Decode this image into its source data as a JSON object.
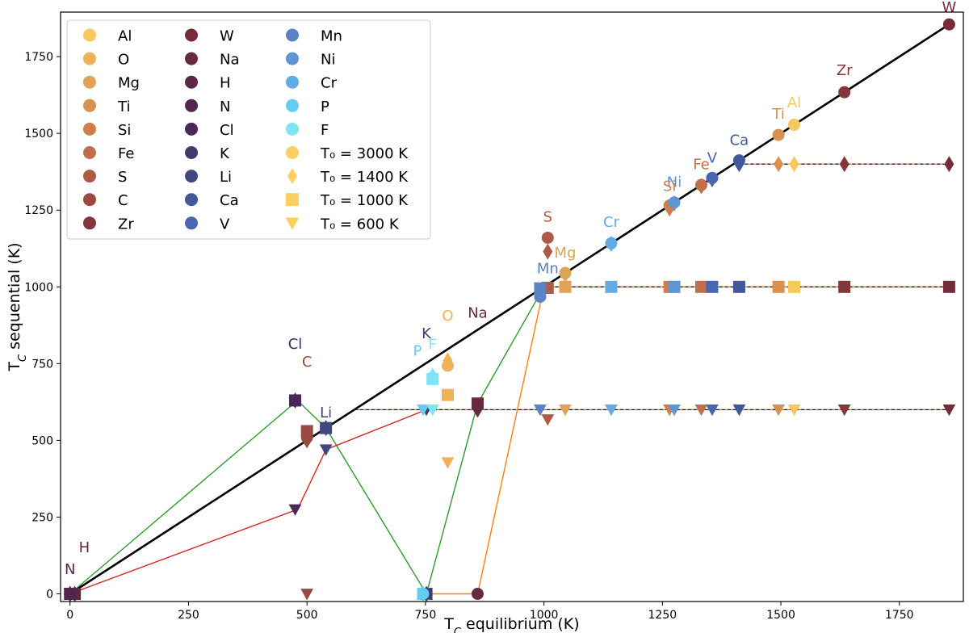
{
  "chart_data": {
    "type": "scatter",
    "xlabel": "T_C equilibrium (K)",
    "ylabel": "T_C sequential (K)",
    "xlim": [
      -20,
      1885
    ],
    "ylim": [
      -25,
      1895
    ],
    "grid": false,
    "legend_position": "top-left",
    "xticks": [
      0,
      250,
      500,
      750,
      1000,
      1250,
      1500,
      1750
    ],
    "yticks": [
      0,
      250,
      500,
      750,
      1000,
      1250,
      1500,
      1750
    ],
    "identity_line": {
      "x": [
        0,
        1855
      ],
      "y": [
        0,
        1855
      ],
      "color": "#000000"
    },
    "plateaus": [
      {
        "y": 1400,
        "x": [
          1412,
          1855
        ]
      },
      {
        "y": 1000,
        "x": [
          1000,
          1855
        ]
      },
      {
        "y": 600,
        "x": [
          600,
          1855
        ]
      }
    ],
    "elements": [
      {
        "name": "Al",
        "tc": 1528,
        "color": "#f5c95e",
        "t3000": 1528,
        "t1400": 1400,
        "t1000": 1000,
        "t600": 600
      },
      {
        "name": "O",
        "tc": 797,
        "color": "#eeb259",
        "t3000": 743,
        "t1400": 760,
        "t1000": 648,
        "t600": 428
      },
      {
        "name": "Mg",
        "tc": 1045,
        "color": "#e0a256",
        "t3000": 1045,
        "t1400": 1040,
        "t1000": 1000,
        "t600": 600
      },
      {
        "name": "Ti",
        "tc": 1495,
        "color": "#d99152",
        "t3000": 1495,
        "t1400": 1400,
        "t1000": 1000,
        "t600": 600
      },
      {
        "name": "Si",
        "tc": 1265,
        "color": "#ce7f4e",
        "t3000": 1265,
        "t1400": 1255,
        "t1000": 1000,
        "t600": 600
      },
      {
        "name": "Fe",
        "tc": 1332,
        "color": "#c06f4a",
        "t3000": 1332,
        "t1400": 1328,
        "t1000": 1000,
        "t600": 600
      },
      {
        "name": "S",
        "tc": 1008,
        "color": "#ae5a45",
        "t3000": 1160,
        "t1400": 1115,
        "t1000": 997,
        "t600": 568
      },
      {
        "name": "C",
        "tc": 500,
        "color": "#9a4940",
        "t3000": 510,
        "t1400": 500,
        "t1000": 530,
        "t600": 0
      },
      {
        "name": "Zr",
        "tc": 1634,
        "color": "#85363b",
        "t3000": 1634,
        "t1400": 1400,
        "t1000": 1000,
        "t600": 600
      },
      {
        "name": "W",
        "tc": 1855,
        "color": "#752b3a",
        "t3000": 1855,
        "t1400": 1400,
        "t1000": 1000,
        "t600": 600
      },
      {
        "name": "Na",
        "tc": 860,
        "color": "#692a40",
        "t3000": 0,
        "t1400": 600,
        "t1000": 620,
        "t600": 600
      },
      {
        "name": "H",
        "tc": 10,
        "color": "#5c2846",
        "t3000": 0,
        "t1400": 0,
        "t1000": 0,
        "t600": 0
      },
      {
        "name": "N",
        "tc": 0,
        "color": "#52264c",
        "t3000": 0,
        "t1400": 0,
        "t1000": 0,
        "t600": 0
      },
      {
        "name": "Cl",
        "tc": 475,
        "color": "#48295a",
        "t3000": 630,
        "t1400": 630,
        "t1000": 630,
        "t600": 275
      },
      {
        "name": "K",
        "tc": 752,
        "color": "#413a70",
        "t3000": 0,
        "t1400": 0,
        "t1000": 0,
        "t600": 600
      },
      {
        "name": "Li",
        "tc": 540,
        "color": "#40487e",
        "t3000": 540,
        "t1400": 540,
        "t1000": 540,
        "t600": 470
      },
      {
        "name": "Ca",
        "tc": 1412,
        "color": "#41589a",
        "t3000": 1412,
        "t1400": 1400,
        "t1000": 1000,
        "t600": 600
      },
      {
        "name": "V",
        "tc": 1355,
        "color": "#4867b0",
        "t3000": 1355,
        "t1400": 1350,
        "t1000": 1000,
        "t600": 600
      },
      {
        "name": "Mn",
        "tc": 992,
        "color": "#5a82c4",
        "t3000": 968,
        "t1400": 975,
        "t1000": 995,
        "t600": 600
      },
      {
        "name": "Ni",
        "tc": 1275,
        "color": "#5c97d2",
        "t3000": 1275,
        "t1400": 1272,
        "t1000": 1000,
        "t600": 600
      },
      {
        "name": "Cr",
        "tc": 1142,
        "color": "#61ade3",
        "t3000": 1142,
        "t1400": 1140,
        "t1000": 1000,
        "t600": 600
      },
      {
        "name": "P",
        "tc": 745,
        "color": "#67cdf0",
        "t3000": 0,
        "t1400": 0,
        "t1000": 0,
        "t600": 600
      },
      {
        "name": "F",
        "tc": 765,
        "color": "#7fe4f5",
        "t3000": 705,
        "t1400": 710,
        "t1000": 700,
        "t600": 600
      }
    ],
    "lines": [
      {
        "name": "green",
        "color": "#2e9a2e",
        "x": [
          0,
          480,
          540,
          752,
          860,
          1000
        ],
        "y": [
          0,
          630,
          540,
          0,
          620,
          1000
        ]
      },
      {
        "name": "red",
        "color": "#d62728",
        "x": [
          0,
          480,
          540,
          752
        ],
        "y": [
          0,
          275,
          470,
          600
        ]
      },
      {
        "name": "orange",
        "color": "#ff7f0e",
        "x": [
          752,
          860,
          1000
        ],
        "y": [
          0,
          0,
          1000
        ]
      }
    ],
    "point_labels": [
      {
        "text": "W",
        "el": "W",
        "x": 1855,
        "y": 1895,
        "color": "#752b3a"
      },
      {
        "text": "Zr",
        "el": "Zr",
        "x": 1634,
        "y": 1690,
        "color": "#85363b"
      },
      {
        "text": "Al",
        "el": "Al",
        "x": 1528,
        "y": 1585,
        "color": "#f5c95e"
      },
      {
        "text": "Ti",
        "el": "Ti",
        "x": 1495,
        "y": 1548,
        "color": "#d99152"
      },
      {
        "text": "Ca",
        "el": "Ca",
        "x": 1412,
        "y": 1462,
        "color": "#41589a"
      },
      {
        "text": "Fe",
        "el": "Fe",
        "x": 1332,
        "y": 1383,
        "color": "#c06f4a"
      },
      {
        "text": "V",
        "el": "V",
        "x": 1355,
        "y": 1405,
        "color": "#4867b0"
      },
      {
        "text": "Ni",
        "el": "Ni",
        "x": 1275,
        "y": 1325,
        "color": "#5c97d2"
      },
      {
        "text": "Si",
        "el": "Si",
        "x": 1265,
        "y": 1313,
        "color": "#ce7f4e"
      },
      {
        "text": "Cr",
        "el": "Cr",
        "x": 1142,
        "y": 1196,
        "color": "#61ade3"
      },
      {
        "text": "S",
        "el": "S",
        "x": 1008,
        "y": 1213,
        "color": "#ae5a45"
      },
      {
        "text": "Mg",
        "el": "Mg",
        "x": 1045,
        "y": 1096,
        "color": "#e0a256"
      },
      {
        "text": "Mn",
        "el": "Mn",
        "x": 1008,
        "y": 1044,
        "color": "#5a82c4"
      },
      {
        "text": "Na",
        "el": "Na",
        "x": 860,
        "y": 900,
        "color": "#692a40"
      },
      {
        "text": "O",
        "el": "O",
        "x": 797,
        "y": 890,
        "color": "#eeb259"
      },
      {
        "text": "K",
        "el": "K",
        "x": 752,
        "y": 832,
        "color": "#413a70"
      },
      {
        "text": "F",
        "el": "F",
        "x": 765,
        "y": 797,
        "color": "#7fe4f5"
      },
      {
        "text": "P",
        "el": "P",
        "x": 733,
        "y": 776,
        "color": "#67cdf0"
      },
      {
        "text": "Cl",
        "el": "Cl",
        "x": 475,
        "y": 798,
        "color": "#48295a"
      },
      {
        "text": "C",
        "el": "C",
        "x": 500,
        "y": 740,
        "color": "#9a4940"
      },
      {
        "text": "Li",
        "el": "Li",
        "x": 540,
        "y": 575,
        "color": "#40487e"
      },
      {
        "text": "H",
        "el": "H",
        "x": 30,
        "y": 135,
        "color": "#5c2846"
      },
      {
        "text": "N",
        "el": "N",
        "x": 0,
        "y": 65,
        "color": "#52264c"
      }
    ],
    "legend": {
      "elements": [
        "Al",
        "O",
        "Mg",
        "Ti",
        "Si",
        "Fe",
        "S",
        "C",
        "Zr",
        "W",
        "Na",
        "H",
        "N",
        "Cl",
        "K",
        "Li",
        "Ca",
        "V",
        "Mn",
        "Ni",
        "Cr",
        "P",
        "F"
      ],
      "markers": [
        {
          "label": "T₀ = 3000 K",
          "shape": "circle",
          "color": "#fccf61"
        },
        {
          "label": "T₀ = 1400 K",
          "shape": "diamond",
          "color": "#fccf61"
        },
        {
          "label": "T₀ = 1000 K",
          "shape": "square",
          "color": "#fccf61"
        },
        {
          "label": "T₀ = 600 K",
          "shape": "triangle-down",
          "color": "#fccf61"
        }
      ]
    }
  }
}
